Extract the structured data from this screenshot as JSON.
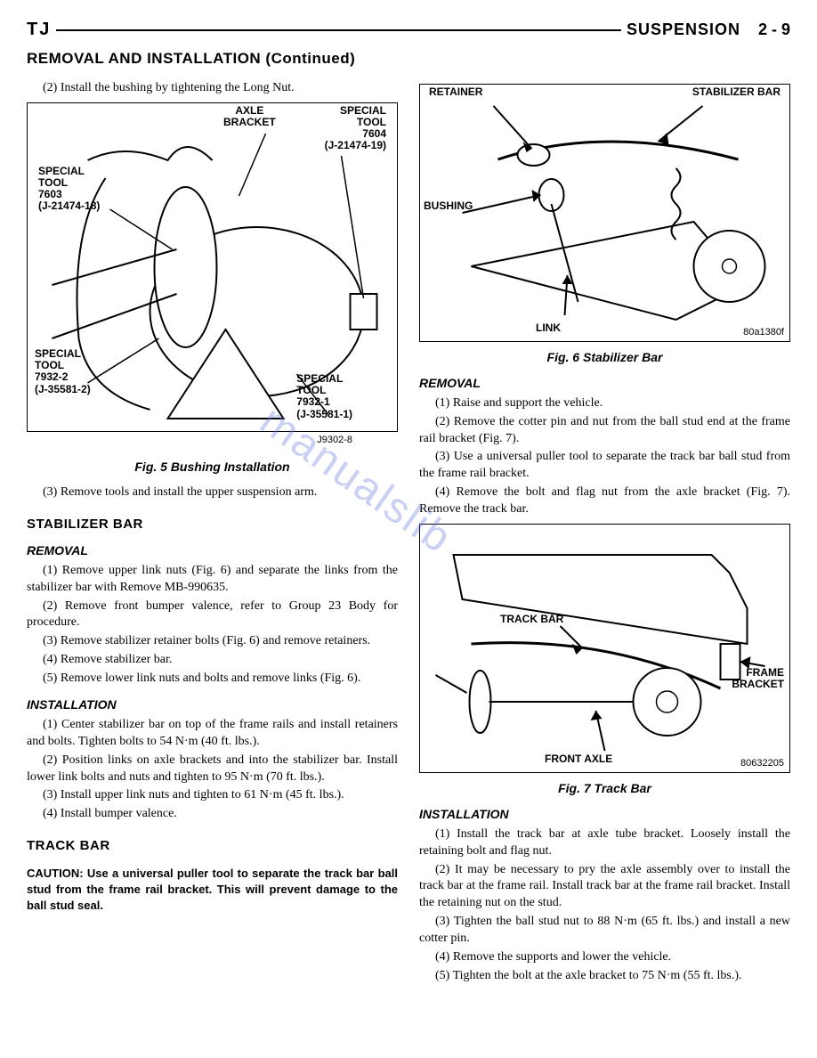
{
  "header": {
    "tj": "TJ",
    "section": "SUSPENSION",
    "page": "2 - 9"
  },
  "section_continue": "REMOVAL AND INSTALLATION (Continued)",
  "left": {
    "p1": "(2) Install the bushing by tightening the Long Nut.",
    "fig5": {
      "labels": {
        "axle_bracket": "AXLE\nBRACKET",
        "special_7604": "SPECIAL\nTOOL\n7604\n(J-21474-19)",
        "special_7603": "SPECIAL\nTOOL\n7603\n(J-21474-18)",
        "special_7932_2": "SPECIAL\nTOOL\n7932-2\n(J-35581-2)",
        "special_7932_1": "SPECIAL\nTOOL\n7932-1\n(J-35581-1)"
      },
      "code": "J9302-8",
      "caption": "Fig. 5 Bushing Installation"
    },
    "p2": "(3) Remove tools and install the upper suspension arm.",
    "stabilizer_bar_heading": "STABILIZER BAR",
    "removal_heading": "REMOVAL",
    "removal": {
      "s1": "(1) Remove upper link nuts (Fig. 6) and separate the links from the stabilizer bar with Remove MB-990635.",
      "s2": "(2) Remove front bumper valence, refer to Group 23 Body for procedure.",
      "s3": "(3) Remove stabilizer retainer bolts (Fig. 6) and remove retainers.",
      "s4": "(4) Remove stabilizer bar.",
      "s5": "(5) Remove lower link nuts and bolts and remove links (Fig. 6)."
    },
    "installation_heading": "INSTALLATION",
    "installation": {
      "s1": "(1) Center stabilizer bar on top of the frame rails and install retainers and bolts. Tighten bolts to 54 N·m (40 ft. lbs.).",
      "s2": "(2) Position links on axle brackets and into the stabilizer bar. Install lower link bolts and nuts and tighten to 95 N·m (70 ft. lbs.).",
      "s3": "(3) Install upper link nuts and tighten to 61 N·m (45 ft. lbs.).",
      "s4": "(4) Install bumper valence."
    },
    "track_bar_heading": "TRACK BAR",
    "caution": "CAUTION: Use a universal puller tool to separate the track bar ball stud from the frame rail bracket. This will prevent damage to the ball stud seal."
  },
  "right": {
    "fig6": {
      "labels": {
        "retainer": "RETAINER",
        "stabilizer_bar": "STABILIZER BAR",
        "bushing": "BUSHING",
        "link": "LINK"
      },
      "code": "80a1380f",
      "caption": "Fig. 6 Stabilizer Bar"
    },
    "removal_heading": "REMOVAL",
    "removal": {
      "s1": "(1) Raise and support the vehicle.",
      "s2": "(2) Remove the cotter pin and nut from the ball stud end at the frame rail bracket (Fig. 7).",
      "s3": "(3) Use a universal puller tool to separate the track bar ball stud from the frame rail bracket.",
      "s4": "(4) Remove the bolt and flag nut from the axle bracket (Fig. 7). Remove the track bar."
    },
    "fig7": {
      "labels": {
        "track_bar": "TRACK BAR",
        "front_axle": "FRONT AXLE",
        "frame_bracket": "FRAME\nBRACKET"
      },
      "code": "80632205",
      "caption": "Fig. 7 Track Bar"
    },
    "installation_heading": "INSTALLATION",
    "installation": {
      "s1": "(1) Install the track bar at axle tube bracket. Loosely install the retaining bolt and flag nut.",
      "s2": "(2) It may be necessary to pry the axle assembly over to install the track bar at the frame rail. Install track bar at the frame rail bracket. Install the retaining nut on the stud.",
      "s3": "(3) Tighten the ball stud nut to 88 N·m (65 ft. lbs.) and install a new cotter pin.",
      "s4": "(4) Remove the supports and lower the vehicle.",
      "s5": "(5) Tighten the bolt at the axle bracket to 75 N·m (55 ft. lbs.)."
    }
  },
  "watermark": "manualslib"
}
